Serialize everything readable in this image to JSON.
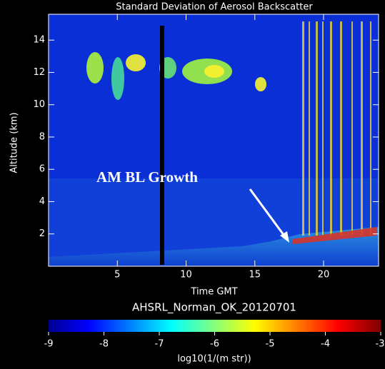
{
  "chart_data": {
    "type": "heatmap",
    "title": "Standard Deviation of Aerosol Backscatter",
    "subtitle": "AHSRL_Norman_OK_20120701",
    "x_label": "Time GMT",
    "y_label": "Altitude (km)",
    "colorbar_label": "log10(1/(m str))",
    "annotation": "AM BL Growth",
    "xlim": [
      0,
      24
    ],
    "xticks": [
      5,
      10,
      15,
      20
    ],
    "ylim": [
      0,
      15.6
    ],
    "yticks": [
      2,
      4,
      6,
      8,
      10,
      12,
      14
    ],
    "clim": [
      -9,
      -3
    ],
    "cticks": [
      -9,
      -8,
      -7,
      -6,
      -5,
      -4,
      -3
    ]
  }
}
